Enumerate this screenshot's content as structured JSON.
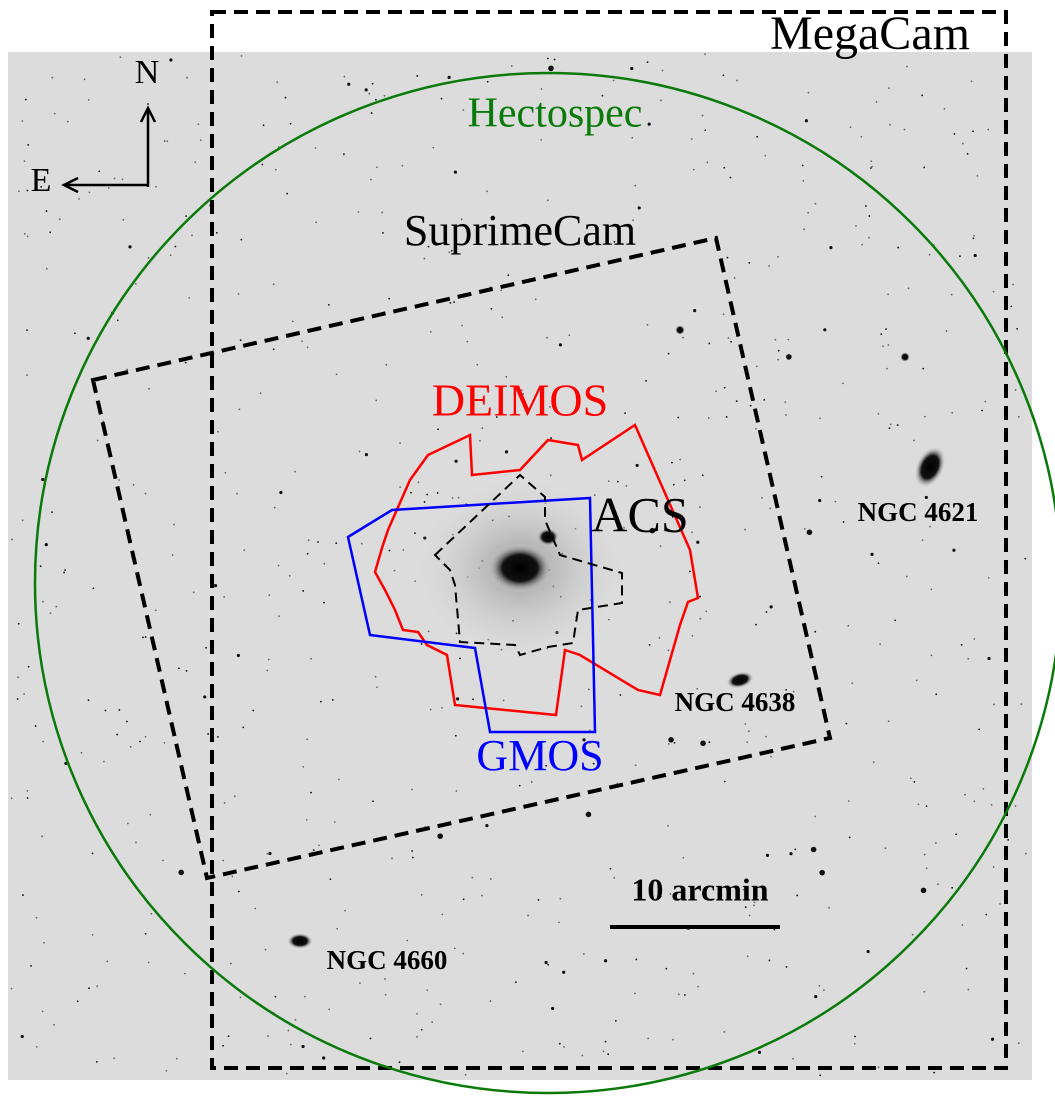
{
  "compass": {
    "north": "N",
    "east": "E"
  },
  "footprints": [
    {
      "label": "MegaCam"
    },
    {
      "label": "Hectospec"
    },
    {
      "label": "SuprimeCam"
    },
    {
      "label": "DEIMOS"
    },
    {
      "label": "ACS"
    },
    {
      "label": "GMOS"
    }
  ],
  "galaxies": [
    {
      "label": "NGC 4621"
    },
    {
      "label": "NGC 4638"
    },
    {
      "label": "NGC 4660"
    }
  ],
  "scale_bar": {
    "label": "10 arcmin"
  }
}
